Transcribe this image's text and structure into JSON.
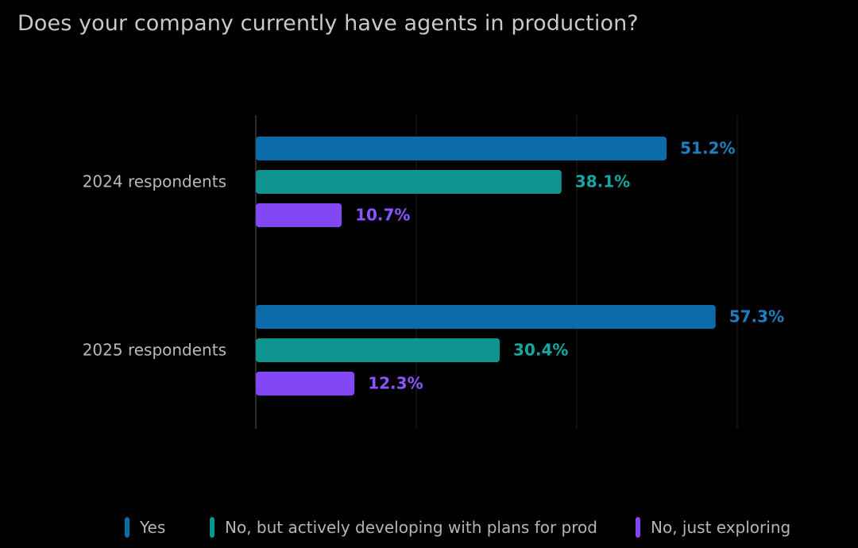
{
  "chart_data": {
    "type": "bar",
    "orientation": "horizontal",
    "title": "Does your company currently have agents in production?",
    "categories": [
      "2024 respondents",
      "2025 respondents"
    ],
    "series": [
      {
        "name": "Yes",
        "color": "#0b6aa8",
        "values": [
          51.2,
          57.3
        ],
        "labels": [
          "51.2%",
          "57.3%"
        ]
      },
      {
        "name": "No, but actively developing with plans for prod",
        "color": "#0f9490",
        "values": [
          38.1,
          30.4
        ],
        "labels": [
          "38.1%",
          "30.4%"
        ]
      },
      {
        "name": "No, just exploring",
        "color": "#8247f5",
        "values": [
          10.7,
          12.3
        ],
        "labels": [
          "10.7%",
          "12.3%"
        ]
      }
    ],
    "xlim": [
      0,
      60
    ],
    "grid": true,
    "legend_position": "bottom"
  }
}
